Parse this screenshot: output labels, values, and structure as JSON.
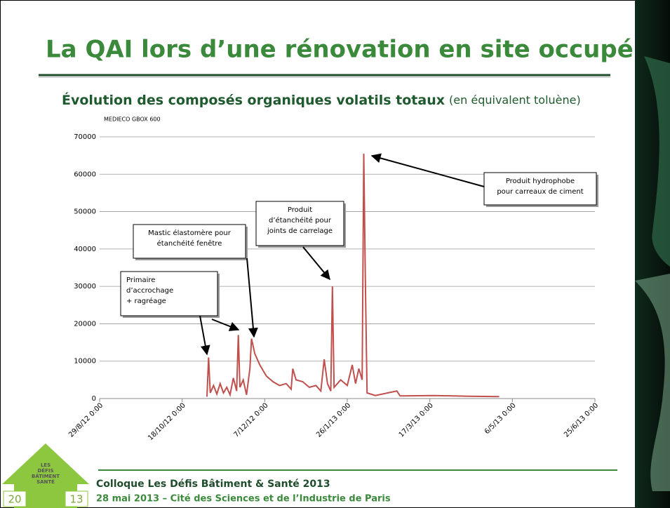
{
  "slide_title": "La QAI lors d’une rénovation en site occupé",
  "chart_data": {
    "type": "line",
    "title": "Évolution des composés organiques volatils totaux",
    "subtitle": "(en équivalent toluène)",
    "source": "MEDIECO GBOX 600",
    "color": "#c0504d",
    "grid": true,
    "x": [
      "2012-11-02",
      "2012-11-03",
      "2012-11-04",
      "2012-11-06",
      "2012-11-08",
      "2012-11-10",
      "2012-11-12",
      "2012-11-14",
      "2012-11-16",
      "2012-11-18",
      "2012-11-20",
      "2012-11-21",
      "2012-11-22",
      "2012-11-24",
      "2012-11-26",
      "2012-11-28",
      "2012-11-29",
      "2012-12-01",
      "2012-12-04",
      "2012-12-08",
      "2012-12-12",
      "2012-12-16",
      "2012-12-20",
      "2012-12-23",
      "2012-12-24",
      "2012-12-26",
      "2012-12-30",
      "2013-01-03",
      "2013-01-07",
      "2013-01-10",
      "2013-01-12",
      "2013-01-14",
      "2013-01-16",
      "2013-01-17",
      "2013-01-18",
      "2013-01-22",
      "2013-01-26",
      "2013-01-29",
      "2013-01-31",
      "2013-02-02",
      "2013-02-04",
      "2013-02-05",
      "2013-02-06",
      "2013-02-07",
      "2013-02-12",
      "2013-02-25",
      "2013-02-27",
      "2013-03-20",
      "2013-04-10",
      "2013-04-28"
    ],
    "values": [
      500,
      11000,
      1500,
      3500,
      1200,
      4000,
      1500,
      3000,
      1000,
      5500,
      2000,
      17000,
      3000,
      5000,
      1000,
      8000,
      16000,
      12000,
      9000,
      6000,
      4500,
      3500,
      4000,
      2500,
      8000,
      5000,
      4500,
      3000,
      3500,
      2000,
      10500,
      4000,
      2000,
      30000,
      3000,
      5000,
      3500,
      9000,
      4000,
      8000,
      5000,
      65500,
      30000,
      1500,
      800,
      2000,
      700,
      800,
      600,
      500
    ],
    "xlim": [
      "2012-08-29",
      "2013-06-25"
    ],
    "xticks": [
      {
        "value": "2012-08-29",
        "label": "29/8/12 0:00"
      },
      {
        "value": "2012-10-18",
        "label": "18/10/12 0:00"
      },
      {
        "value": "2012-12-07",
        "label": "7/12/12 0:00"
      },
      {
        "value": "2013-01-26",
        "label": "26/1/13 0:00"
      },
      {
        "value": "2013-03-17",
        "label": "17/3/13 0:00"
      },
      {
        "value": "2013-05-06",
        "label": "6/5/13 0:00"
      },
      {
        "value": "2013-06-25",
        "label": "25/6/13 0:00"
      }
    ],
    "ylim": [
      0,
      70000
    ],
    "yticks": [
      0,
      10000,
      20000,
      30000,
      40000,
      50000,
      60000,
      70000
    ],
    "annotations": [
      [
        "Primaire",
        "d’accrochage",
        "+ ragréage"
      ],
      [
        "Mastic élastomère pour",
        "étanchéité fenêtre"
      ],
      [
        "Produit",
        "d’étanchéité pour",
        "joints de carrelage"
      ],
      [
        "Produit hydrophobe",
        "pour carreaux de ciment"
      ]
    ]
  },
  "logo": {
    "lines": [
      "LES",
      "DÉFIS",
      "BÂTIMENT",
      "SANTÉ"
    ],
    "left": "20",
    "right": "13"
  },
  "footer": {
    "line1": "Colloque Les Défis Bâtiment & Santé 2013",
    "line2": "28 mai 2013 – Cité des Sciences et de l’Industrie de Paris"
  }
}
